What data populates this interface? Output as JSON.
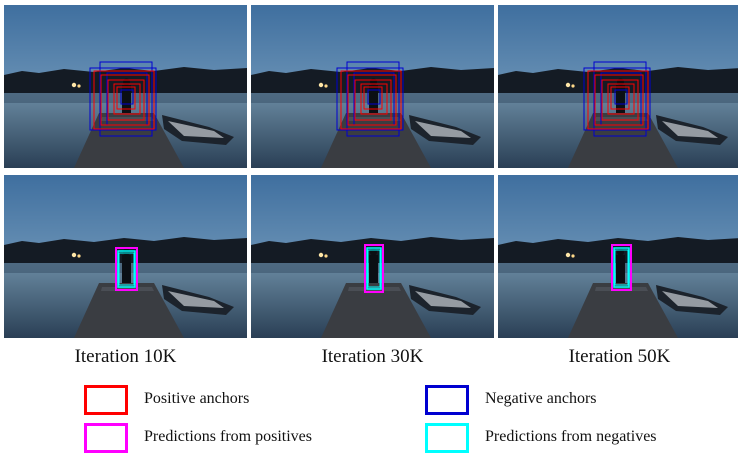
{
  "captions": [
    "Iteration 10K",
    "Iteration 30K",
    "Iteration 50K"
  ],
  "legend": [
    {
      "label": "Positive anchors",
      "color": "#ff0000"
    },
    {
      "label": "Negative anchors",
      "color": "#0000d0"
    },
    {
      "label": "Predictions from positives",
      "color": "#ff00ff"
    },
    {
      "label": "Predictions from negatives",
      "color": "#00ffff"
    }
  ]
}
